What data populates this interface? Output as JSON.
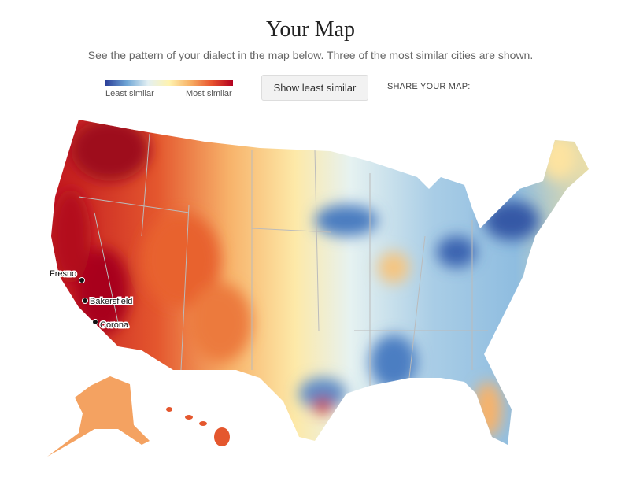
{
  "header": {
    "title": "Your Map",
    "subtitle": "See the pattern of your dialect in the map below. Three of the most similar cities are shown."
  },
  "legend": {
    "low": "Least similar",
    "high": "Most similar"
  },
  "button": "Show least similar",
  "share": "SHARE YOUR MAP:",
  "cities": [
    "Fresno",
    "Bakersfield",
    "Corona"
  ]
}
